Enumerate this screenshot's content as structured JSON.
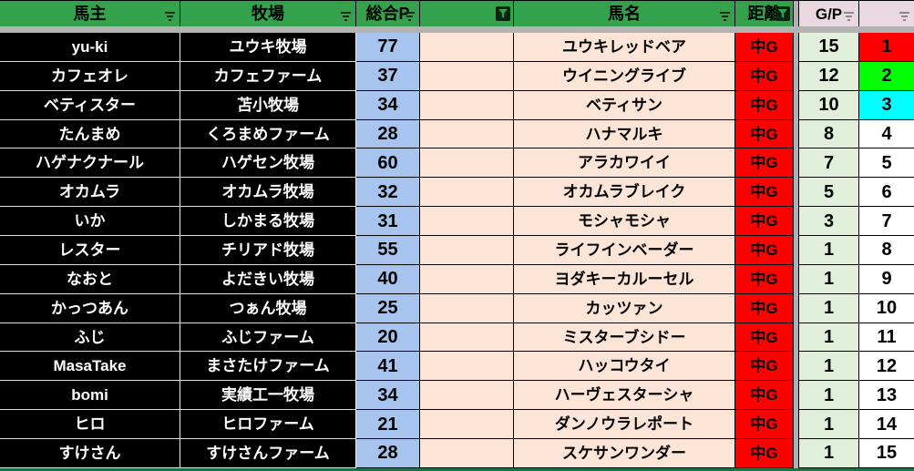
{
  "colors": {
    "header_green": "#34A24D",
    "header_pink": "#E9D7E2",
    "owner_farm_bg": "#000000",
    "total_p_bg": "#A6C4EE",
    "horse_name_bg": "#FCE4D6",
    "distance_bg": "#FF0000",
    "gp_bg": "#E2EFDA",
    "hidden_strip_gray": "#B3B3B3",
    "bottom_border_green": "#1E7245",
    "rank1_bg": "#FF0000",
    "rank2_bg": "#00FF00",
    "rank3_bg": "#00FFFF"
  },
  "table": {
    "headers": [
      {
        "label": "馬主",
        "bg": "green",
        "filter": "lines"
      },
      {
        "label": "牧場",
        "bg": "green",
        "filter": "lines"
      },
      {
        "label": "総合P",
        "bg": "green",
        "filter": "lines"
      },
      {
        "label": "",
        "bg": "green",
        "filter": "active"
      },
      {
        "label": "馬名",
        "bg": "green",
        "filter": "lines"
      },
      {
        "label": "距離",
        "bg": "green",
        "filter": "active"
      },
      {
        "label": "G/P",
        "bg": "pink",
        "filter": "lines"
      },
      {
        "label": "",
        "bg": "pink",
        "filter": "lines"
      }
    ],
    "rows": [
      {
        "owner": "yu-ki",
        "farm": "ユウキ牧場",
        "total": "77",
        "blank": "",
        "horse": "ユウキレッドベア",
        "dist": "中G",
        "gp": "15",
        "num": "1",
        "num_bg": "#FF0000"
      },
      {
        "owner": "カフェオレ",
        "farm": "カフェファーム",
        "total": "37",
        "blank": "",
        "horse": "ウイニングライブ",
        "dist": "中G",
        "gp": "12",
        "num": "2",
        "num_bg": "#00FF00"
      },
      {
        "owner": "ベティスター",
        "farm": "苫小牧場",
        "total": "34",
        "blank": "",
        "horse": "ベティサン",
        "dist": "中G",
        "gp": "10",
        "num": "3",
        "num_bg": "#00FFFF"
      },
      {
        "owner": "たんまめ",
        "farm": "くろまめファーム",
        "total": "28",
        "blank": "",
        "horse": "ハナマルキ",
        "dist": "中G",
        "gp": "8",
        "num": "4",
        "num_bg": "#FFFFFF"
      },
      {
        "owner": "ハゲナクナール",
        "farm": "ハゲセン牧場",
        "total": "60",
        "blank": "",
        "horse": "アラカワイイ",
        "dist": "中G",
        "gp": "7",
        "num": "5",
        "num_bg": "#FFFFFF"
      },
      {
        "owner": "オカムラ",
        "farm": "オカムラ牧場",
        "total": "32",
        "blank": "",
        "horse": "オカムラブレイク",
        "dist": "中G",
        "gp": "5",
        "num": "6",
        "num_bg": "#FFFFFF"
      },
      {
        "owner": "いか",
        "farm": "しかまる牧場",
        "total": "31",
        "blank": "",
        "horse": "モシャモシャ",
        "dist": "中G",
        "gp": "3",
        "num": "7",
        "num_bg": "#FFFFFF"
      },
      {
        "owner": "レスター",
        "farm": "チリアド牧場",
        "total": "55",
        "blank": "",
        "horse": "ライフインベーダー",
        "dist": "中G",
        "gp": "1",
        "num": "8",
        "num_bg": "#FFFFFF"
      },
      {
        "owner": "なおと",
        "farm": "よだきい牧場",
        "total": "40",
        "blank": "",
        "horse": "ヨダキーカルーセル",
        "dist": "中G",
        "gp": "1",
        "num": "9",
        "num_bg": "#FFFFFF"
      },
      {
        "owner": "かっつあん",
        "farm": "つぁん牧場",
        "total": "25",
        "blank": "",
        "horse": "カッツァン",
        "dist": "中G",
        "gp": "1",
        "num": "10",
        "num_bg": "#FFFFFF"
      },
      {
        "owner": "ふじ",
        "farm": "ふじファーム",
        "total": "20",
        "blank": "",
        "horse": "ミスターブシドー",
        "dist": "中G",
        "gp": "1",
        "num": "11",
        "num_bg": "#FFFFFF"
      },
      {
        "owner": "MasaTake",
        "farm": "まさたけファーム",
        "total": "41",
        "blank": "",
        "horse": "ハッコウタイ",
        "dist": "中G",
        "gp": "1",
        "num": "12",
        "num_bg": "#FFFFFF"
      },
      {
        "owner": "bomi",
        "farm": "実績工一牧場",
        "total": "34",
        "blank": "",
        "horse": "ハーヴェスターシャ",
        "dist": "中G",
        "gp": "1",
        "num": "13",
        "num_bg": "#FFFFFF"
      },
      {
        "owner": "ヒロ",
        "farm": "ヒロファーム",
        "total": "21",
        "blank": "",
        "horse": "ダンノウラレポート",
        "dist": "中G",
        "gp": "1",
        "num": "14",
        "num_bg": "#FFFFFF"
      },
      {
        "owner": "すけさん",
        "farm": "すけさんファーム",
        "total": "28",
        "blank": "",
        "horse": "スケサンワンダー",
        "dist": "中G",
        "gp": "1",
        "num": "15",
        "num_bg": "#FFFFFF"
      }
    ]
  }
}
